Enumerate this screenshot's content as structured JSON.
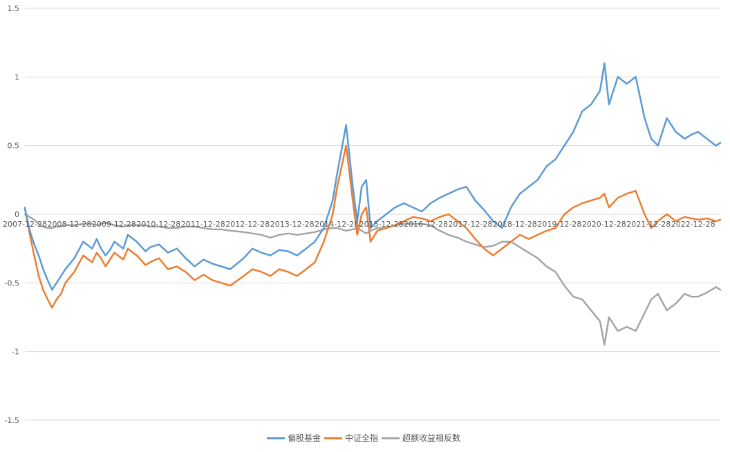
{
  "chart_data": {
    "type": "line",
    "title": "",
    "xlabel": "",
    "ylabel": "",
    "ylim": [
      -1.5,
      1.5
    ],
    "yticks": [
      {
        "value": 1.5,
        "label": "1.5"
      },
      {
        "value": 1.0,
        "label": "1"
      },
      {
        "value": 0.5,
        "label": "0.5"
      },
      {
        "value": 0.0,
        "label": "0"
      },
      {
        "value": -0.5,
        "label": "-0.5"
      },
      {
        "value": -1.0,
        "label": "-1"
      },
      {
        "value": -1.5,
        "label": "-1.5"
      }
    ],
    "xlim": [
      2007.99,
      2023.6
    ],
    "xtick_labels": [
      {
        "x": 2007.99,
        "label": "2007-12-28"
      },
      {
        "x": 2008.99,
        "label": "2008-12-28"
      },
      {
        "x": 2009.99,
        "label": "2009-12-28"
      },
      {
        "x": 2010.99,
        "label": "2010-12-28"
      },
      {
        "x": 2011.99,
        "label": "2011-12-28"
      },
      {
        "x": 2012.99,
        "label": "2012-12-28"
      },
      {
        "x": 2013.99,
        "label": "2013-12-28"
      },
      {
        "x": 2014.99,
        "label": "2014-12-28"
      },
      {
        "x": 2015.99,
        "label": "2015-12-28"
      },
      {
        "x": 2016.99,
        "label": "2016-12-28"
      },
      {
        "x": 2017.99,
        "label": "2017-12-28"
      },
      {
        "x": 2018.99,
        "label": "2018-12-28"
      },
      {
        "x": 2019.99,
        "label": "2019-12-28"
      },
      {
        "x": 2020.99,
        "label": "2020-12-28"
      },
      {
        "x": 2021.99,
        "label": "2021-12-28"
      },
      {
        "x": 2022.99,
        "label": "2022-12-28"
      }
    ],
    "grid": true,
    "legend_position": "bottom",
    "series": [
      {
        "name": "偏股基金",
        "color": "#5b9bd5",
        "x": [
          2007.99,
          2008.1,
          2008.2,
          2008.3,
          2008.4,
          2008.5,
          2008.6,
          2008.7,
          2008.8,
          2008.9,
          2009.1,
          2009.3,
          2009.5,
          2009.6,
          2009.7,
          2009.8,
          2009.9,
          2010.0,
          2010.2,
          2010.3,
          2010.5,
          2010.7,
          2010.8,
          2011.0,
          2011.2,
          2011.4,
          2011.6,
          2011.8,
          2012.0,
          2012.2,
          2012.4,
          2012.6,
          2012.9,
          2013.1,
          2013.3,
          2013.5,
          2013.7,
          2013.9,
          2014.1,
          2014.3,
          2014.5,
          2014.7,
          2014.9,
          2015.0,
          2015.2,
          2015.35,
          2015.45,
          2015.55,
          2015.65,
          2015.75,
          2015.9,
          2016.1,
          2016.3,
          2016.5,
          2016.7,
          2016.9,
          2017.1,
          2017.3,
          2017.5,
          2017.7,
          2017.9,
          2018.1,
          2018.3,
          2018.5,
          2018.7,
          2018.9,
          2019.1,
          2019.3,
          2019.5,
          2019.7,
          2019.9,
          2020.1,
          2020.3,
          2020.5,
          2020.7,
          2020.9,
          2021.0,
          2021.1,
          2021.3,
          2021.5,
          2021.7,
          2021.9,
          2022.05,
          2022.2,
          2022.4,
          2022.6,
          2022.8,
          2022.95,
          2023.1,
          2023.3,
          2023.5,
          2023.6
        ],
        "y": [
          0.04,
          -0.12,
          -0.22,
          -0.3,
          -0.4,
          -0.48,
          -0.55,
          -0.5,
          -0.45,
          -0.4,
          -0.32,
          -0.2,
          -0.25,
          -0.18,
          -0.25,
          -0.3,
          -0.26,
          -0.2,
          -0.25,
          -0.15,
          -0.2,
          -0.27,
          -0.24,
          -0.22,
          -0.28,
          -0.25,
          -0.32,
          -0.38,
          -0.33,
          -0.36,
          -0.38,
          -0.4,
          -0.32,
          -0.25,
          -0.28,
          -0.3,
          -0.26,
          -0.27,
          -0.3,
          -0.25,
          -0.2,
          -0.1,
          0.1,
          0.3,
          0.65,
          0.2,
          -0.05,
          0.2,
          0.25,
          -0.1,
          -0.05,
          0.0,
          0.05,
          0.08,
          0.05,
          0.02,
          0.08,
          0.12,
          0.15,
          0.18,
          0.2,
          0.1,
          0.03,
          -0.05,
          -0.1,
          0.05,
          0.15,
          0.2,
          0.25,
          0.35,
          0.4,
          0.5,
          0.6,
          0.75,
          0.8,
          0.9,
          1.1,
          0.8,
          1.0,
          0.95,
          1.0,
          0.7,
          0.55,
          0.5,
          0.7,
          0.6,
          0.55,
          0.58,
          0.6,
          0.55,
          0.5,
          0.52
        ]
      },
      {
        "name": "中证全指",
        "color": "#ed7d31",
        "x": [
          2007.99,
          2008.1,
          2008.2,
          2008.3,
          2008.4,
          2008.5,
          2008.6,
          2008.7,
          2008.8,
          2008.9,
          2009.1,
          2009.3,
          2009.5,
          2009.6,
          2009.7,
          2009.8,
          2009.9,
          2010.0,
          2010.2,
          2010.3,
          2010.5,
          2010.7,
          2010.8,
          2011.0,
          2011.2,
          2011.4,
          2011.6,
          2011.8,
          2012.0,
          2012.2,
          2012.4,
          2012.6,
          2012.9,
          2013.1,
          2013.3,
          2013.5,
          2013.7,
          2013.9,
          2014.1,
          2014.3,
          2014.5,
          2014.7,
          2014.9,
          2015.0,
          2015.2,
          2015.35,
          2015.45,
          2015.55,
          2015.65,
          2015.75,
          2015.9,
          2016.1,
          2016.3,
          2016.5,
          2016.7,
          2016.9,
          2017.1,
          2017.3,
          2017.5,
          2017.7,
          2017.9,
          2018.1,
          2018.3,
          2018.5,
          2018.7,
          2018.9,
          2019.1,
          2019.3,
          2019.5,
          2019.7,
          2019.9,
          2020.1,
          2020.3,
          2020.5,
          2020.7,
          2020.9,
          2021.0,
          2021.1,
          2021.3,
          2021.5,
          2021.7,
          2021.9,
          2022.05,
          2022.2,
          2022.4,
          2022.6,
          2022.8,
          2022.95,
          2023.1,
          2023.3,
          2023.5,
          2023.6
        ],
        "y": [
          0.05,
          -0.15,
          -0.3,
          -0.45,
          -0.55,
          -0.62,
          -0.68,
          -0.62,
          -0.58,
          -0.5,
          -0.42,
          -0.3,
          -0.35,
          -0.28,
          -0.32,
          -0.38,
          -0.33,
          -0.28,
          -0.33,
          -0.25,
          -0.3,
          -0.37,
          -0.35,
          -0.32,
          -0.4,
          -0.38,
          -0.42,
          -0.48,
          -0.44,
          -0.48,
          -0.5,
          -0.52,
          -0.45,
          -0.4,
          -0.42,
          -0.45,
          -0.4,
          -0.42,
          -0.45,
          -0.4,
          -0.35,
          -0.2,
          0.0,
          0.2,
          0.5,
          0.1,
          -0.15,
          0.0,
          0.05,
          -0.2,
          -0.12,
          -0.1,
          -0.08,
          -0.05,
          -0.02,
          -0.03,
          -0.05,
          -0.02,
          0.0,
          -0.05,
          -0.1,
          -0.18,
          -0.25,
          -0.3,
          -0.25,
          -0.2,
          -0.15,
          -0.18,
          -0.15,
          -0.12,
          -0.1,
          0.0,
          0.05,
          0.08,
          0.1,
          0.12,
          0.15,
          0.05,
          0.12,
          0.15,
          0.17,
          0.0,
          -0.1,
          -0.05,
          0.0,
          -0.05,
          -0.02,
          -0.03,
          -0.04,
          -0.03,
          -0.05,
          -0.04
        ]
      },
      {
        "name": "超额收益相反数",
        "color": "#a5a5a5",
        "x": [
          2007.99,
          2008.1,
          2008.2,
          2008.3,
          2008.4,
          2008.5,
          2008.6,
          2008.7,
          2008.8,
          2008.9,
          2009.1,
          2009.3,
          2009.5,
          2009.6,
          2009.7,
          2009.8,
          2009.9,
          2010.0,
          2010.2,
          2010.3,
          2010.5,
          2010.7,
          2010.8,
          2011.0,
          2011.2,
          2011.4,
          2011.6,
          2011.8,
          2012.0,
          2012.2,
          2012.4,
          2012.6,
          2012.9,
          2013.1,
          2013.3,
          2013.5,
          2013.7,
          2013.9,
          2014.1,
          2014.3,
          2014.5,
          2014.7,
          2014.9,
          2015.0,
          2015.2,
          2015.35,
          2015.45,
          2015.55,
          2015.65,
          2015.75,
          2015.9,
          2016.1,
          2016.3,
          2016.5,
          2016.7,
          2016.9,
          2017.1,
          2017.3,
          2017.5,
          2017.7,
          2017.9,
          2018.1,
          2018.3,
          2018.5,
          2018.7,
          2018.9,
          2019.1,
          2019.3,
          2019.5,
          2019.7,
          2019.9,
          2020.1,
          2020.3,
          2020.5,
          2020.7,
          2020.9,
          2021.0,
          2021.1,
          2021.3,
          2021.5,
          2021.7,
          2021.9,
          2022.05,
          2022.2,
          2022.4,
          2022.6,
          2022.8,
          2022.95,
          2023.1,
          2023.3,
          2023.5,
          2023.6
        ],
        "y": [
          0.0,
          -0.02,
          -0.04,
          -0.07,
          -0.09,
          -0.1,
          -0.1,
          -0.09,
          -0.09,
          -0.08,
          -0.08,
          -0.07,
          -0.07,
          -0.08,
          -0.07,
          -0.06,
          -0.07,
          -0.08,
          -0.09,
          -0.08,
          -0.08,
          -0.08,
          -0.09,
          -0.09,
          -0.1,
          -0.1,
          -0.09,
          -0.09,
          -0.1,
          -0.11,
          -0.11,
          -0.12,
          -0.13,
          -0.14,
          -0.15,
          -0.17,
          -0.15,
          -0.14,
          -0.15,
          -0.14,
          -0.13,
          -0.11,
          -0.1,
          -0.1,
          -0.12,
          -0.11,
          -0.1,
          -0.12,
          -0.14,
          -0.12,
          -0.1,
          -0.1,
          -0.08,
          -0.07,
          -0.07,
          -0.07,
          -0.08,
          -0.12,
          -0.15,
          -0.17,
          -0.2,
          -0.22,
          -0.24,
          -0.23,
          -0.2,
          -0.2,
          -0.24,
          -0.28,
          -0.32,
          -0.38,
          -0.42,
          -0.52,
          -0.6,
          -0.62,
          -0.7,
          -0.78,
          -0.95,
          -0.75,
          -0.85,
          -0.82,
          -0.85,
          -0.72,
          -0.62,
          -0.58,
          -0.7,
          -0.65,
          -0.58,
          -0.6,
          -0.6,
          -0.57,
          -0.53,
          -0.55
        ]
      }
    ]
  }
}
